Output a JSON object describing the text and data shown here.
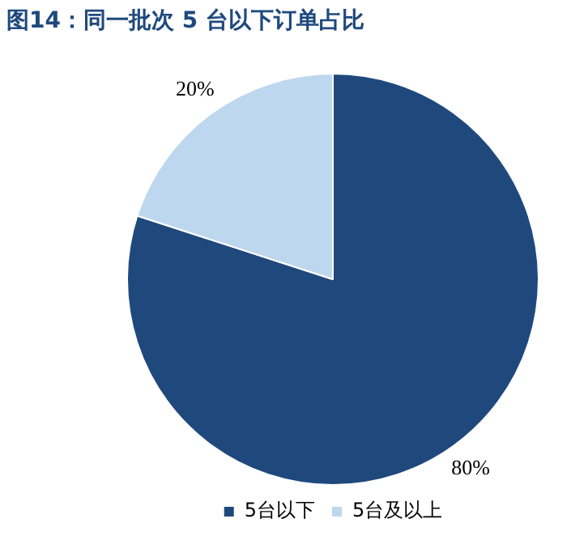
{
  "chart_data": {
    "type": "pie",
    "title": "图14：同一批次 5 台以下订单占比",
    "categories": [
      "5台以下",
      "5台及以上"
    ],
    "values": [
      80,
      20
    ],
    "colors": [
      "#1f497d",
      "#bdd7ee"
    ],
    "value_labels": [
      "80%",
      "20%"
    ],
    "legend": "bottom"
  }
}
